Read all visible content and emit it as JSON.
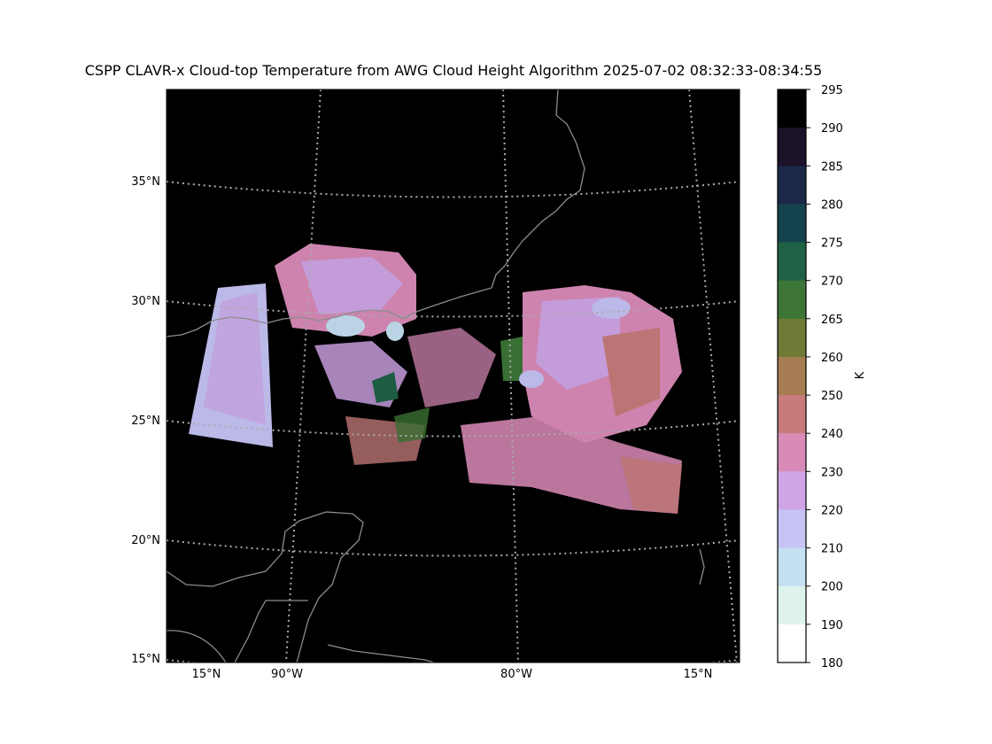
{
  "title": "CSPP CLAVR-x Cloud-top Temperature from AWG Cloud Height Algorithm 2025-07-02 08:32:33-08:34:55",
  "map": {
    "lat_labels": [
      "35°N",
      "30°N",
      "25°N",
      "20°N",
      "15°N"
    ],
    "lon_labels": [
      "15°N",
      "90°W",
      "80°W",
      "15°N"
    ],
    "background_color": "#000000",
    "coastline_color": "#8c8c8c",
    "grid_color": "#aaaaaa"
  },
  "colorbar": {
    "unit": "K",
    "ticks": [
      "295",
      "290",
      "285",
      "280",
      "275",
      "270",
      "265",
      "260",
      "250",
      "240",
      "230",
      "220",
      "210",
      "200",
      "190",
      "180"
    ],
    "colors": [
      "#000000",
      "#1b1129",
      "#1b2847",
      "#15434d",
      "#1f6245",
      "#3d7536",
      "#6f7a36",
      "#a67c52",
      "#c77b7b",
      "#d98bb8",
      "#cfa5e6",
      "#c6c3f5",
      "#c5e0f2",
      "#ddf3ec",
      "#ffffff"
    ]
  }
}
